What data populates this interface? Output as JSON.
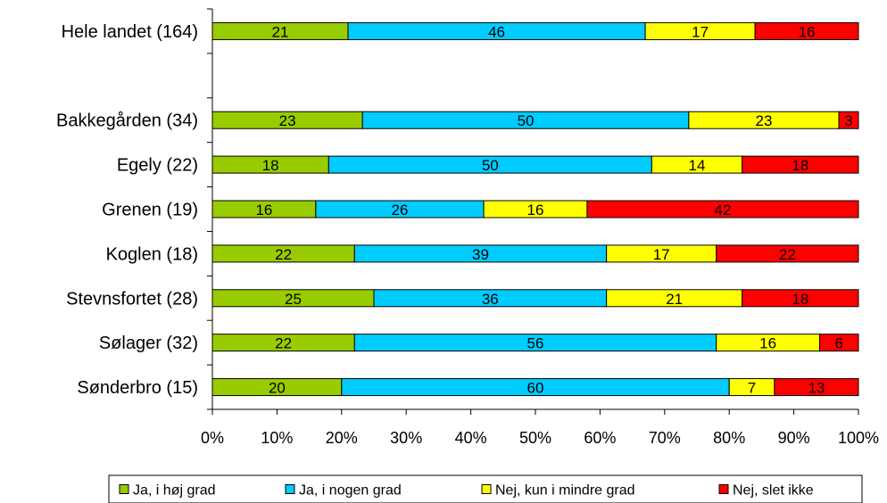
{
  "chart_data": {
    "type": "bar",
    "orientation": "horizontal",
    "stacked": "percent",
    "title": "",
    "xlabel": "",
    "ylabel": "",
    "xlim": [
      0,
      100
    ],
    "grid": false,
    "legend_position": "bottom",
    "x_ticks": [
      "0%",
      "10%",
      "20%",
      "30%",
      "40%",
      "50%",
      "60%",
      "70%",
      "80%",
      "90%",
      "100%"
    ],
    "categories": [
      "Hele landet (164)",
      "",
      "Bakkegården (34)",
      "Egely (22)",
      "Grenen (19)",
      "Koglen (18)",
      "Stevnsfortet (28)",
      "Sølager (32)",
      "Sønderbro (15)"
    ],
    "series": [
      {
        "name": "Ja, i høj grad",
        "color": "#99cc00",
        "values": [
          21,
          null,
          23,
          18,
          16,
          22,
          25,
          22,
          20
        ]
      },
      {
        "name": "Ja, i nogen grad",
        "color": "#00ccff",
        "values": [
          46,
          null,
          50,
          50,
          26,
          39,
          36,
          56,
          60
        ]
      },
      {
        "name": "Nej, kun i mindre grad",
        "color": "#ffff00",
        "values": [
          17,
          null,
          23,
          14,
          16,
          17,
          21,
          16,
          7
        ]
      },
      {
        "name": "Nej, slet ikke",
        "color": "#ff0000",
        "values": [
          16,
          null,
          3,
          18,
          42,
          22,
          18,
          6,
          13
        ]
      }
    ]
  }
}
